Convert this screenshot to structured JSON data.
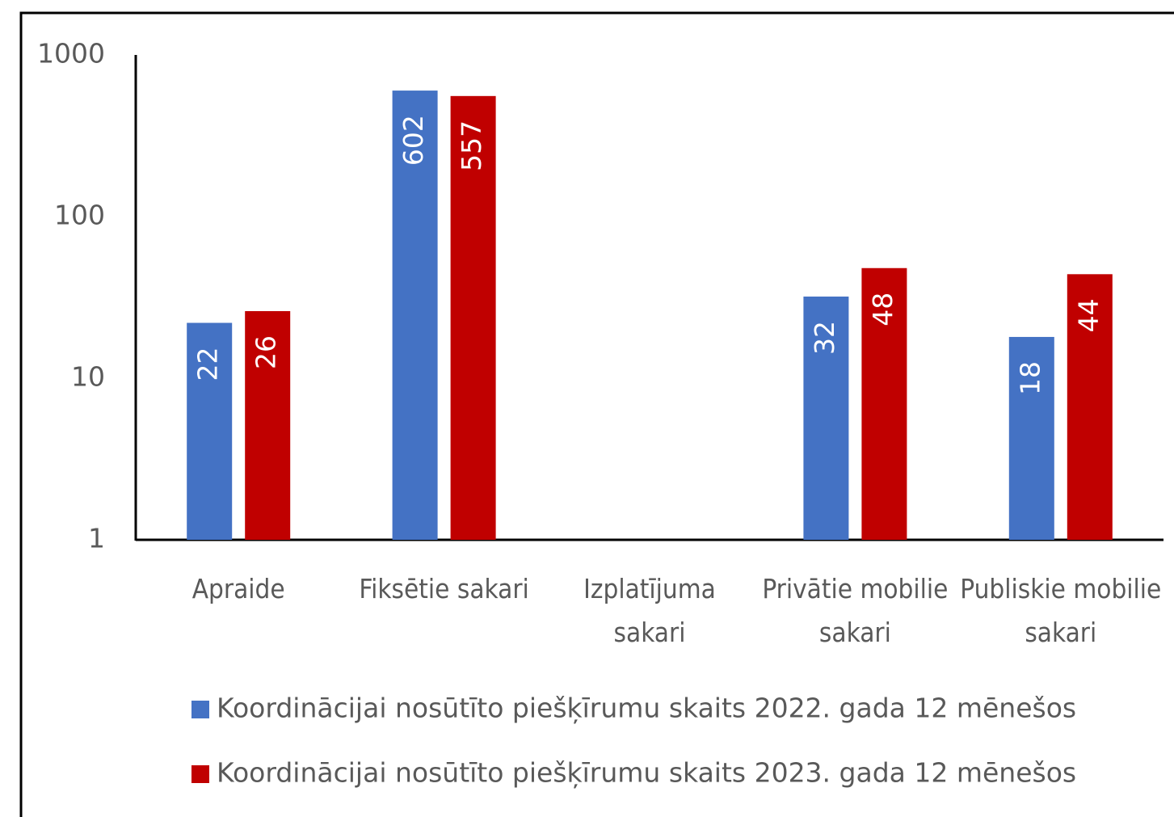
{
  "chart_data": {
    "type": "bar",
    "categories": [
      "Apraide",
      "Fiksētie sakari",
      "Izplatījuma sakari",
      "Privātie mobilie sakari",
      "Publiskie mobilie sakari"
    ],
    "series": [
      {
        "name": "Koordinācijai nosūtīto piešķīrumu skaits 2022. gada 12 mēnešos",
        "color": "#4472c4",
        "values": [
          22,
          602,
          null,
          32,
          18
        ]
      },
      {
        "name": "Koordinācijai nosūtīto piešķīrumu skaits 2023. gada 12 mēnešos",
        "color": "#c00000",
        "values": [
          26,
          557,
          null,
          48,
          44
        ]
      }
    ],
    "ylim": [
      1,
      1000
    ],
    "yticks": [
      1,
      10,
      100,
      1000
    ],
    "log_scale": true,
    "grid": false
  }
}
